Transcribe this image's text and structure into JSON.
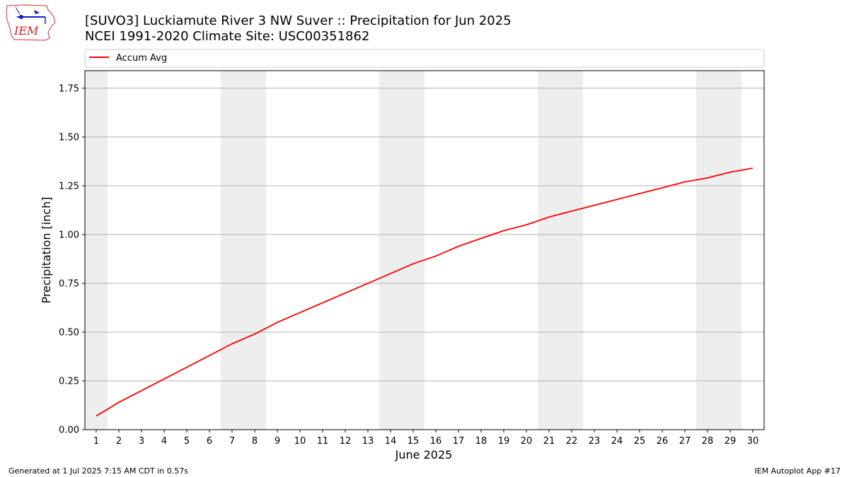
{
  "header": {
    "title_line1": "[SUVO3] Luckiamute River 3 NW Suver :: Precipitation for Jun 2025",
    "title_line2": "NCEI 1991-2020 Climate Site: USC00351862",
    "logo_text": "IEM"
  },
  "footer": {
    "left": "Generated at 1 Jul 2025 7:15 AM CDT in 0.57s",
    "right": "IEM Autoplot App #17"
  },
  "chart_data": {
    "type": "line",
    "xlabel": "June 2025",
    "ylabel": "Precipitation [inch]",
    "xlim": [
      0.5,
      30.5
    ],
    "ylim": [
      0,
      1.84
    ],
    "yticks": [
      0.0,
      0.25,
      0.5,
      0.75,
      1.0,
      1.25,
      1.5,
      1.75
    ],
    "ytick_labels": [
      "0.00",
      "0.25",
      "0.50",
      "0.75",
      "1.00",
      "1.25",
      "1.50",
      "1.75"
    ],
    "xticks": [
      1,
      2,
      3,
      4,
      5,
      6,
      7,
      8,
      9,
      10,
      11,
      12,
      13,
      14,
      15,
      16,
      17,
      18,
      19,
      20,
      21,
      22,
      23,
      24,
      25,
      26,
      27,
      28,
      29,
      30
    ],
    "grid": "horizontal",
    "legend_position": "top",
    "weekend_shading": {
      "color": "#eeeeee",
      "ranges": [
        [
          0.5,
          1.5
        ],
        [
          6.5,
          8.5
        ],
        [
          13.5,
          15.5
        ],
        [
          20.5,
          22.5
        ],
        [
          27.5,
          29.5
        ]
      ]
    },
    "series": [
      {
        "name": "Accum Avg",
        "color": "#ff0000",
        "x": [
          1,
          2,
          3,
          4,
          5,
          6,
          7,
          8,
          9,
          10,
          11,
          12,
          13,
          14,
          15,
          16,
          17,
          18,
          19,
          20,
          21,
          22,
          23,
          24,
          25,
          26,
          27,
          28,
          29,
          30
        ],
        "values": [
          0.07,
          0.14,
          0.2,
          0.26,
          0.32,
          0.38,
          0.44,
          0.49,
          0.55,
          0.6,
          0.65,
          0.7,
          0.75,
          0.8,
          0.85,
          0.89,
          0.94,
          0.98,
          1.02,
          1.05,
          1.09,
          1.12,
          1.15,
          1.18,
          1.21,
          1.24,
          1.27,
          1.29,
          1.32,
          1.34
        ]
      }
    ]
  }
}
